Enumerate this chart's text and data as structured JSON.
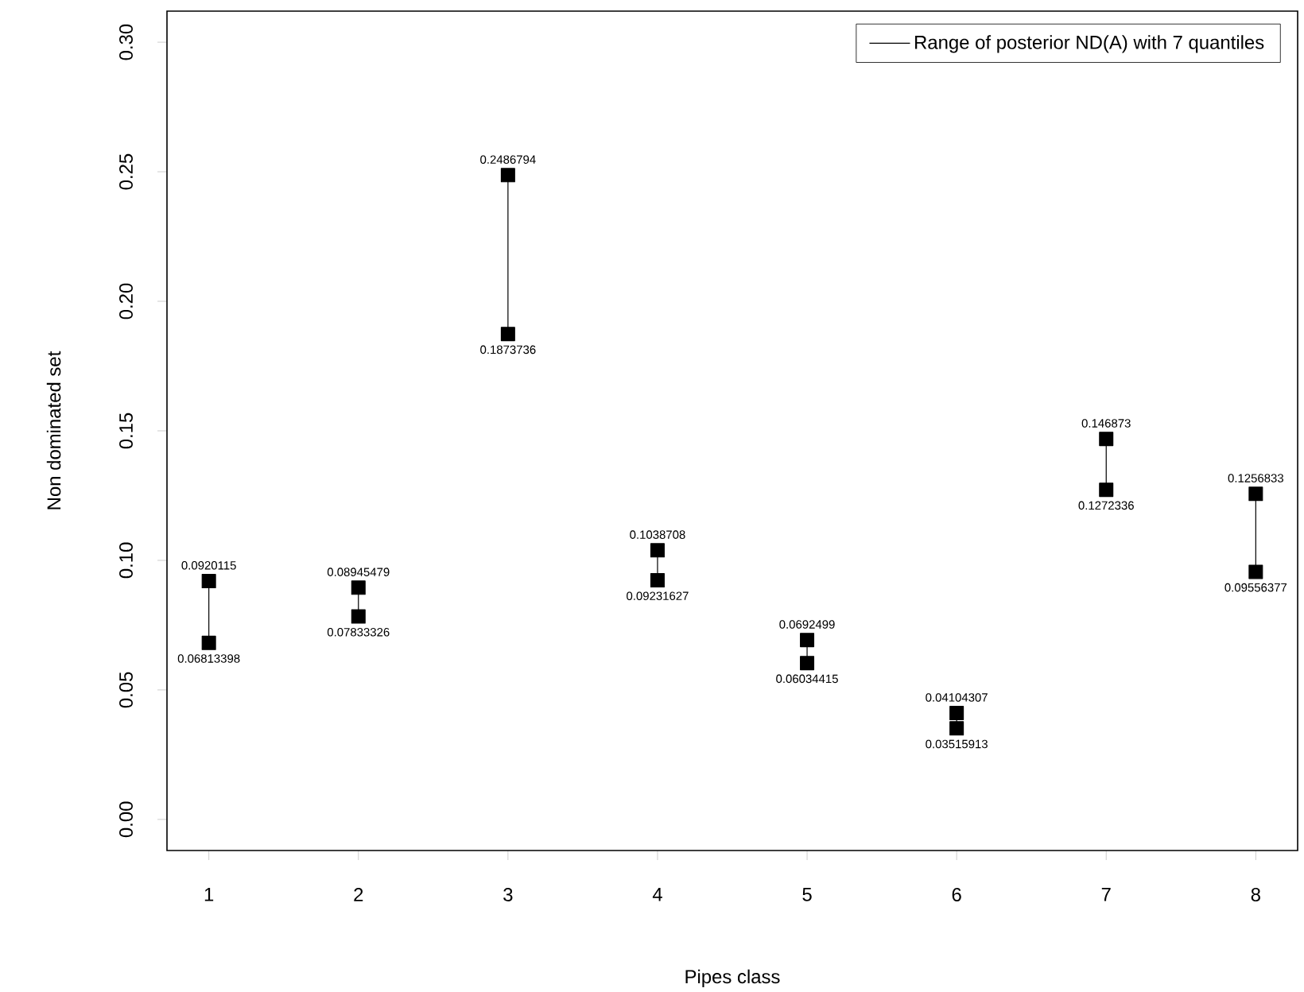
{
  "chart_data": {
    "type": "line",
    "xlabel": "Pipes class",
    "ylabel": "Non dominated set",
    "categories": [
      "1",
      "2",
      "3",
      "4",
      "5",
      "6",
      "7",
      "8"
    ],
    "series": [
      {
        "name": "Range of posterior ND(A) with 7 quantiles",
        "color": "#000000",
        "x": [
          "1",
          "1"
        ],
        "values": [
          0.06813398,
          0.0920115
        ]
      },
      {
        "color": "#000000",
        "x": [
          "2",
          "2"
        ],
        "values": [
          0.07833326,
          0.08945479
        ]
      },
      {
        "color": "#000000",
        "x": [
          "3",
          "3"
        ],
        "values": [
          0.1873736,
          0.2486794
        ]
      },
      {
        "color": "#000000",
        "x": [
          "4",
          "4"
        ],
        "values": [
          0.09231627,
          0.1038708
        ]
      },
      {
        "color": "#000000",
        "x": [
          "5",
          "5"
        ],
        "values": [
          0.06034415,
          0.0692499
        ]
      },
      {
        "color": "#000000",
        "x": [
          "6",
          "6"
        ],
        "values": [
          0.03515913,
          0.04104307
        ]
      },
      {
        "color": "#000000",
        "x": [
          "7",
          "7"
        ],
        "values": [
          0.1272336,
          0.146873
        ]
      },
      {
        "color": "#000000",
        "x": [
          "8",
          "8"
        ],
        "values": [
          0.09556377,
          0.1256833
        ]
      }
    ],
    "ylim": [
      -0.012,
      0.312
    ],
    "yticks": [
      {
        "value": 0,
        "label": "0.00"
      },
      {
        "value": 0.05,
        "label": "0.05"
      },
      {
        "value": 0.1,
        "label": "0.10"
      },
      {
        "value": 0.15,
        "label": "0.15"
      },
      {
        "value": 0.2,
        "label": "0.20"
      },
      {
        "value": 0.25,
        "label": "0.25"
      },
      {
        "value": 0.3,
        "label": "0.30"
      }
    ],
    "marker": "square",
    "line_style": "solid",
    "data_labels": true,
    "legend": "top right",
    "grid": false
  }
}
